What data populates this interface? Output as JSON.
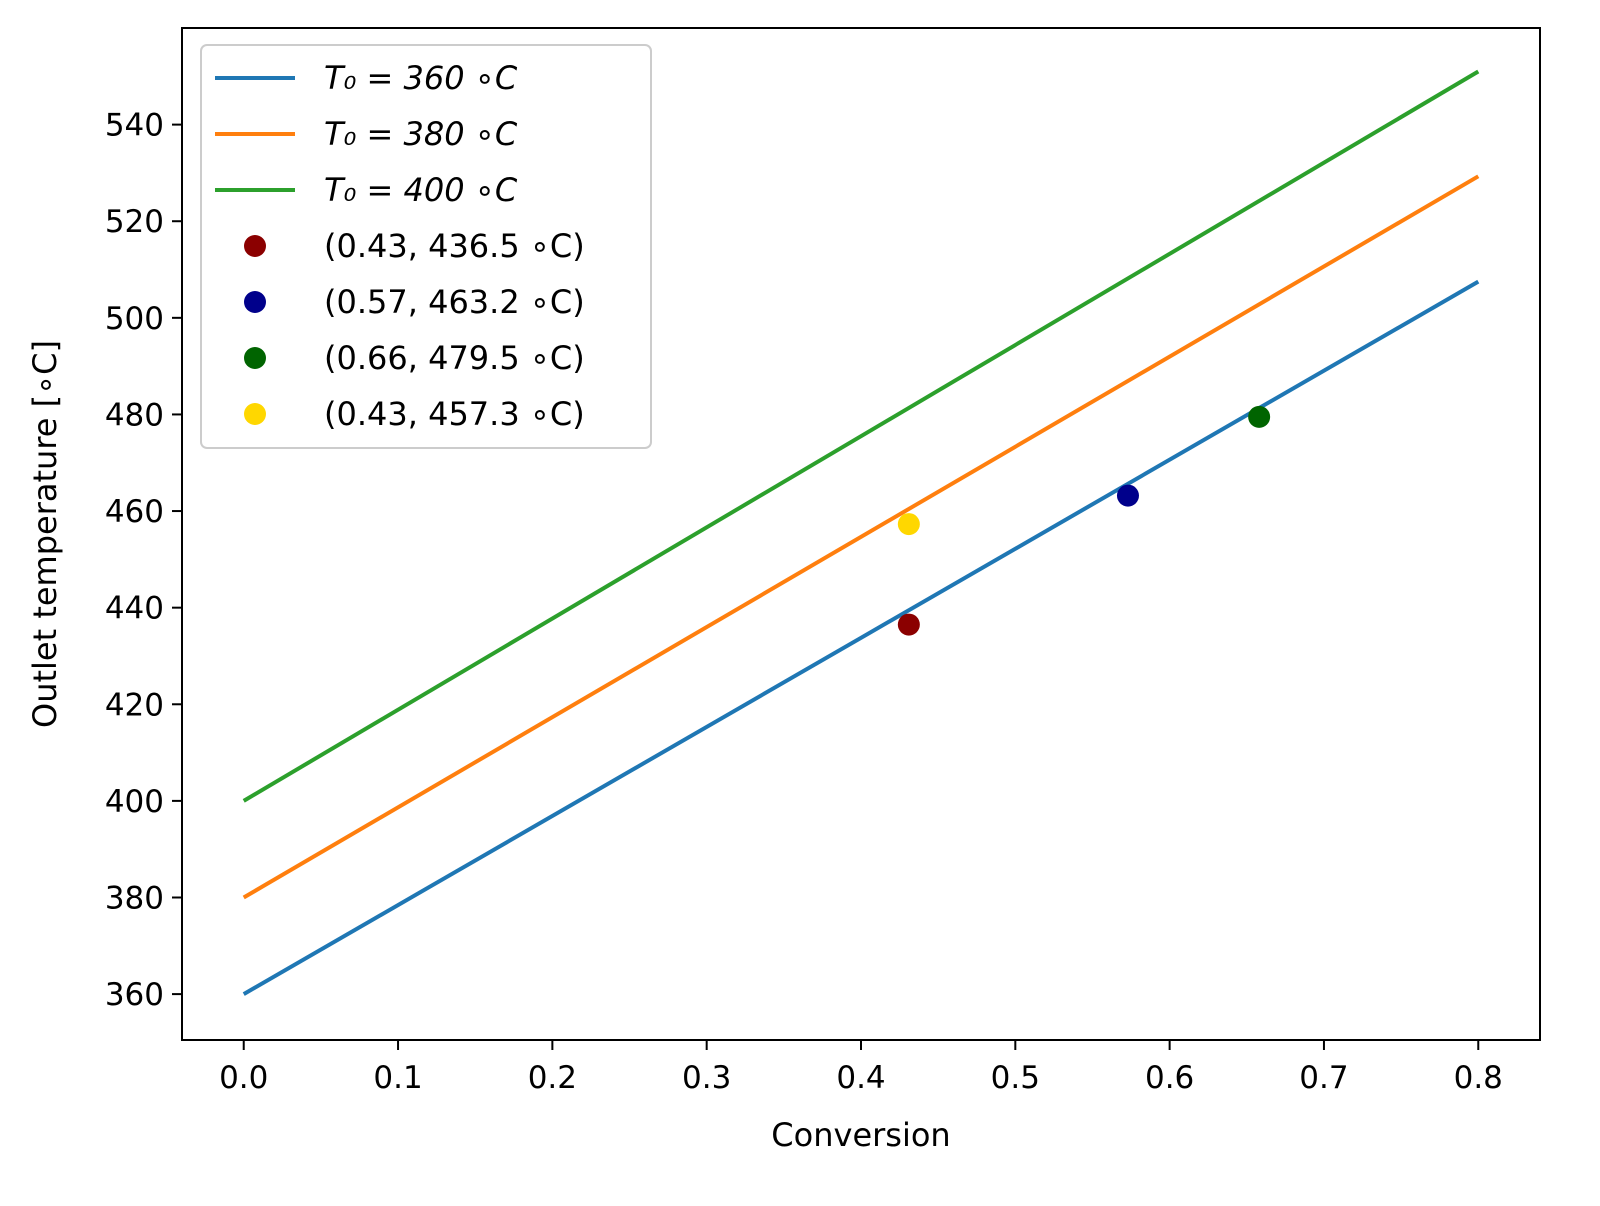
{
  "chart_data": {
    "type": "line",
    "title": "",
    "xlabel": "Conversion",
    "ylabel": "Outlet temperature [∘C]",
    "xlim": [
      -0.04,
      0.84
    ],
    "ylim": [
      350.5,
      560
    ],
    "grid": false,
    "legend_position": "top-left",
    "xticks": [
      0.0,
      0.1,
      0.2,
      0.3,
      0.4,
      0.5,
      0.6,
      0.7,
      0.8
    ],
    "xtick_labels": [
      "0.0",
      "0.1",
      "0.2",
      "0.3",
      "0.4",
      "0.5",
      "0.6",
      "0.7",
      "0.8"
    ],
    "yticks": [
      360,
      380,
      400,
      420,
      440,
      460,
      480,
      500,
      520,
      540
    ],
    "ytick_labels": [
      "360",
      "380",
      "400",
      "420",
      "440",
      "460",
      "480",
      "500",
      "520",
      "540"
    ],
    "series": [
      {
        "name": "T₀ = 360 ∘C",
        "color": "#1f77b4",
        "x": [
          0.0,
          0.8
        ],
        "y": [
          360,
          507.5
        ]
      },
      {
        "name": "T₀ = 380 ∘C",
        "color": "#ff7f0e",
        "x": [
          0.0,
          0.8
        ],
        "y": [
          380,
          529.3
        ]
      },
      {
        "name": "T₀ = 400 ∘C",
        "color": "#2ca02c",
        "x": [
          0.0,
          0.8
        ],
        "y": [
          400,
          551
        ]
      }
    ],
    "points": [
      {
        "name": "(0.43, 436.5 ∘C)",
        "color": "#8b0000",
        "x": 0.431,
        "y": 436.5
      },
      {
        "name": "(0.57, 463.2 ∘C)",
        "color": "#00008b",
        "x": 0.573,
        "y": 463.2
      },
      {
        "name": "(0.66, 479.5 ∘C)",
        "color": "#006400",
        "x": 0.658,
        "y": 479.5
      },
      {
        "name": "(0.43, 457.3 ∘C)",
        "color": "#ffd700",
        "x": 0.431,
        "y": 457.3
      }
    ]
  }
}
